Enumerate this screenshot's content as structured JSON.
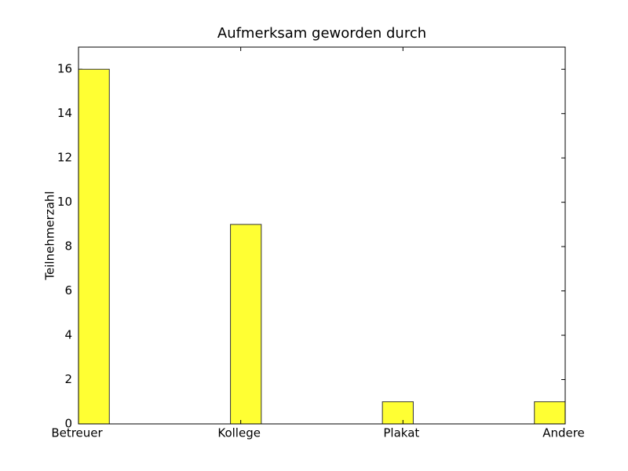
{
  "chart_data": {
    "type": "bar",
    "title": "Aufmerksam geworden durch",
    "y_label": "Teilnehmerzahl",
    "categories": [
      "Betreuer",
      "Kollege",
      "Plakat",
      "Andere"
    ],
    "values": [
      16,
      9,
      1,
      1
    ],
    "color": "#ffff33",
    "ylim": [
      0,
      17
    ],
    "yticks": [
      0,
      2,
      4,
      6,
      8,
      10,
      12,
      14,
      16
    ],
    "grid": false
  }
}
